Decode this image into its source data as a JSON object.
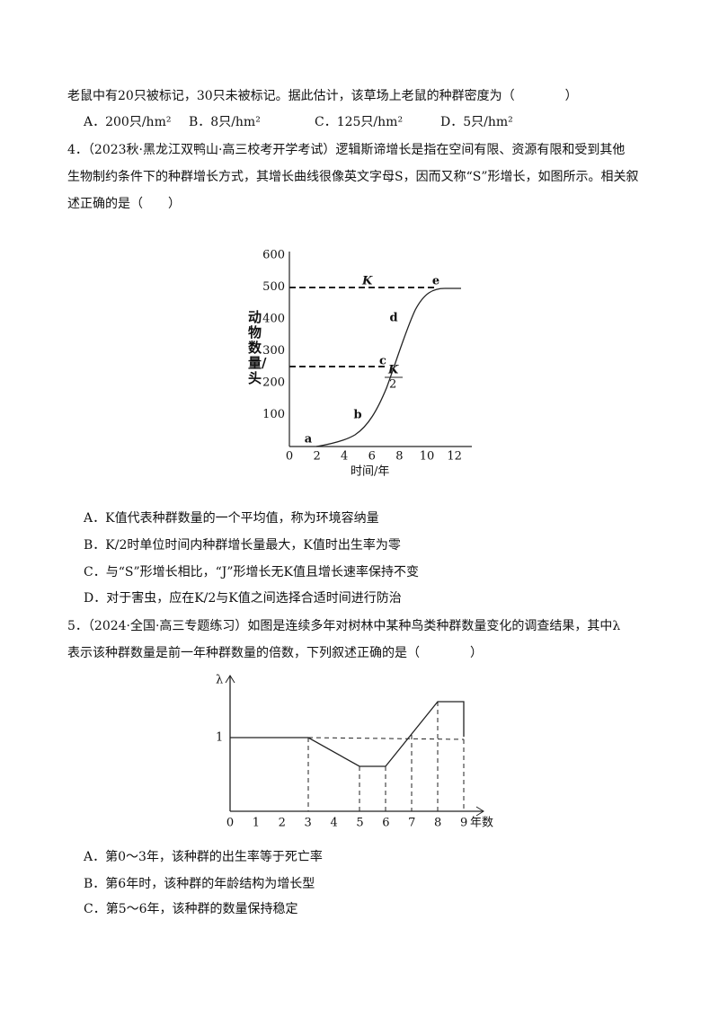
{
  "lines_top": [
    "老鼠中有20只被标记，30只未被标记。据此估计，该草场上老鼠的种群密度为（　　　　）"
  ],
  "q3_options": [
    "A．200只/hm²",
    "B．8只/hm²",
    "C．125只/hm²",
    "D．5只/hm²"
  ],
  "q4": {
    "stem": [
      "4．（2023秋·黑龙江双鸭山·高三校考开学考试）逻辑斯谛增长是指在空间有限、资源有限和受到其他",
      "生物制约条件下的种群增长方式，其增长曲线很像英文字母S，因而又称“S”形增长，如图所示。相关叙",
      "述正确的是（　　）"
    ],
    "figure": {
      "ylabel": "动物数量/头",
      "xlabel": "时间/年",
      "yticks": [
        "100",
        "200",
        "300",
        "400",
        "500",
        "600"
      ],
      "xticks": [
        "0",
        "2",
        "4",
        "6",
        "8",
        "10",
        "12"
      ],
      "points": [
        "a",
        "b",
        "c",
        "d",
        "e"
      ],
      "k": "K",
      "k_half_top": "K",
      "k_half_bottom": "2"
    },
    "options": [
      "A．K值代表种群数量的一个平均值，称为环境容纳量",
      "B．K/2时单位时间内种群增长量最大，K值时出生率为零",
      "C．与“S”形增长相比，“J”形增长无K值且增长速率保持不变",
      "D．对于害虫，应在K/2与K值之间选择合适时间进行防治"
    ]
  },
  "q5": {
    "stem": [
      "5．（2024·全国·高三专题练习）如图是连续多年对树林中某种鸟类种群数量变化的调查结果，其中λ",
      "表示该种群数量是前一年种群数量的倍数，下列叙述正确的是（　　　　）"
    ],
    "figure": {
      "ylabel": "λ",
      "ytick": "1",
      "xticks": [
        "0",
        "1",
        "2",
        "3",
        "4",
        "5",
        "6",
        "7",
        "8",
        "9"
      ],
      "xlabel": "年数"
    },
    "options": [
      "A．第0～3年，该种群的出生率等于死亡率",
      "B．第6年时，该种群的年龄结构为增长型",
      "C．第5～6年，该种群的数量保持稳定"
    ]
  }
}
